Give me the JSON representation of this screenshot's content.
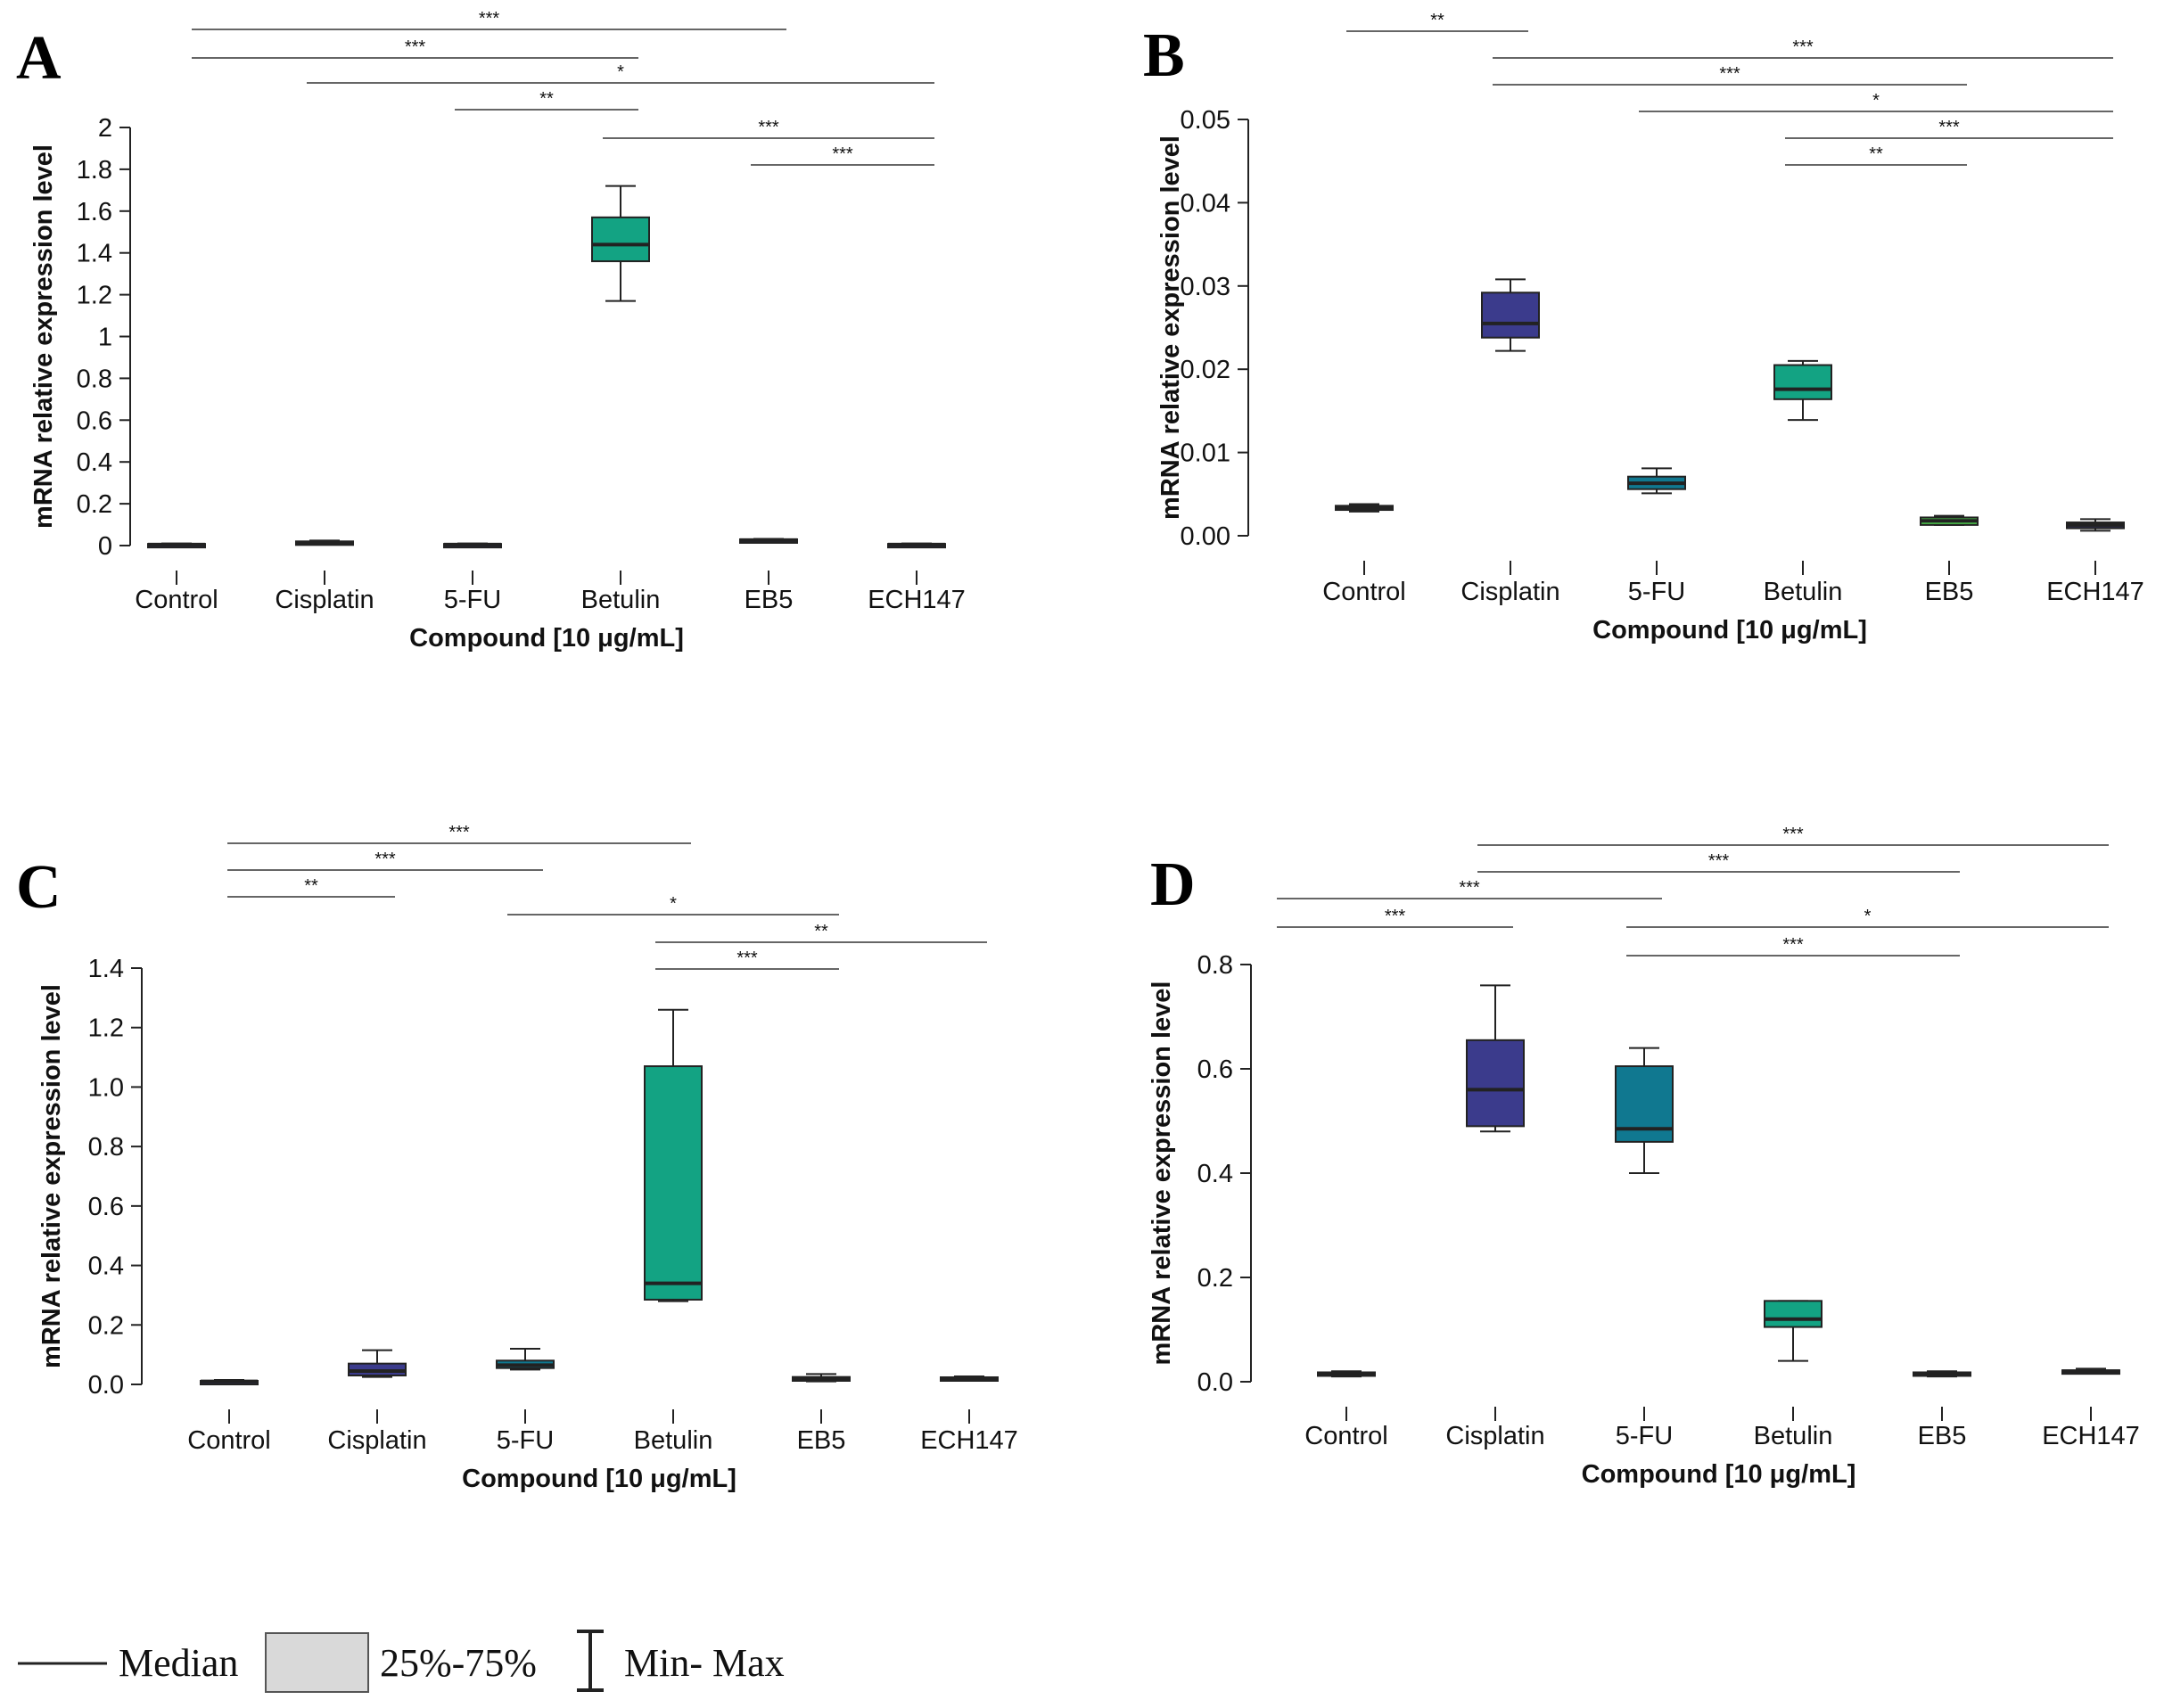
{
  "colors": {
    "box_default": "#13a383",
    "axis": "#222222",
    "legend_box_fill": "#d9d9d9"
  },
  "chart_data": [
    {
      "id": "A",
      "type": "box",
      "panel_label": "A",
      "ylabel": "mRNA relative expression level",
      "xlabel": "Compound [10 μg/mL]",
      "ylim": [
        0,
        2
      ],
      "yticks": [
        "0",
        "0.2",
        "0.4",
        "0.6",
        "0.8",
        "1",
        "1.2",
        "1.4",
        "1.6",
        "1.8",
        "2"
      ],
      "categories": [
        "Control",
        "Cisplatin",
        "5-FU",
        "Betulin",
        "EB5",
        "ECH147"
      ],
      "boxes": [
        {
          "min": 0.002,
          "q1": 0.003,
          "median": 0.005,
          "q3": 0.008,
          "max": 0.01,
          "color": "#2e2e52"
        },
        {
          "min": 0.006,
          "q1": 0.008,
          "median": 0.012,
          "q3": 0.02,
          "max": 0.024,
          "color": "#2e2e52"
        },
        {
          "min": 0.002,
          "q1": 0.003,
          "median": 0.005,
          "q3": 0.008,
          "max": 0.01,
          "color": "#2e2e52"
        },
        {
          "min": 1.17,
          "q1": 1.36,
          "median": 1.44,
          "q3": 1.57,
          "max": 1.72,
          "color": "#13a383"
        },
        {
          "min": 0.018,
          "q1": 0.022,
          "median": 0.026,
          "q3": 0.03,
          "max": 0.032,
          "color": "#2e2e52"
        },
        {
          "min": 0.002,
          "q1": 0.003,
          "median": 0.005,
          "q3": 0.008,
          "max": 0.01,
          "color": "#2e2e52"
        }
      ],
      "significance": [
        {
          "from": 0,
          "to": 4,
          "label": "***"
        },
        {
          "from": 0,
          "to": 3,
          "label": "***"
        },
        {
          "from": 1,
          "to": 5,
          "label": "*"
        },
        {
          "from": 2,
          "to": 3,
          "label": "**"
        },
        {
          "from": 3,
          "to": 5,
          "label": "***"
        },
        {
          "from": 4,
          "to": 5,
          "label": "***"
        }
      ]
    },
    {
      "id": "B",
      "type": "box",
      "panel_label": "B",
      "ylabel": "mRNA relative expression level",
      "xlabel": "Compound [10 μg/mL]",
      "ylim": [
        0,
        0.05
      ],
      "yticks": [
        "0.00",
        "0.01",
        "0.02",
        "0.03",
        "0.04",
        "0.05"
      ],
      "categories": [
        "Control",
        "Cisplatin",
        "5-FU",
        "Betulin",
        "EB5",
        "ECH147"
      ],
      "boxes": [
        {
          "min": 0.0029,
          "q1": 0.0031,
          "median": 0.0034,
          "q3": 0.0036,
          "max": 0.0038,
          "color": "#2e2e52"
        },
        {
          "min": 0.0222,
          "q1": 0.0238,
          "median": 0.0255,
          "q3": 0.0292,
          "max": 0.0308,
          "color": "#3b3b8c"
        },
        {
          "min": 0.0051,
          "q1": 0.0056,
          "median": 0.0063,
          "q3": 0.0071,
          "max": 0.0081,
          "color": "#107890"
        },
        {
          "min": 0.0139,
          "q1": 0.0164,
          "median": 0.0176,
          "q3": 0.0205,
          "max": 0.021,
          "color": "#13a383"
        },
        {
          "min": 0.0013,
          "q1": 0.0013,
          "median": 0.0018,
          "q3": 0.0022,
          "max": 0.0024,
          "color": "#4bbf4b"
        },
        {
          "min": 0.0006,
          "q1": 0.0009,
          "median": 0.0013,
          "q3": 0.0016,
          "max": 0.002,
          "color": "#2e2e52"
        }
      ],
      "significance": [
        {
          "from": 0,
          "to": 1,
          "label": "**"
        },
        {
          "from": 1,
          "to": 5,
          "label": "***"
        },
        {
          "from": 1,
          "to": 4,
          "label": "***"
        },
        {
          "from": 2,
          "to": 5,
          "label": "*"
        },
        {
          "from": 3,
          "to": 5,
          "label": "***"
        },
        {
          "from": 3,
          "to": 4,
          "label": "**"
        }
      ]
    },
    {
      "id": "C",
      "type": "box",
      "panel_label": "C",
      "ylabel": "mRNA relative expression level",
      "xlabel": "Compound [10 μg/mL]",
      "ylim": [
        0,
        1.4
      ],
      "yticks": [
        "0.0",
        "0.2",
        "0.4",
        "0.6",
        "0.8",
        "1.0",
        "1.2",
        "1.4"
      ],
      "categories": [
        "Control",
        "Cisplatin",
        "5-FU",
        "Betulin",
        "EB5",
        "ECH147"
      ],
      "boxes": [
        {
          "min": 0.005,
          "q1": 0.008,
          "median": 0.01,
          "q3": 0.012,
          "max": 0.015,
          "color": "#2e2e52"
        },
        {
          "min": 0.025,
          "q1": 0.03,
          "median": 0.045,
          "q3": 0.07,
          "max": 0.115,
          "color": "#3b3b8c"
        },
        {
          "min": 0.05,
          "q1": 0.055,
          "median": 0.065,
          "q3": 0.08,
          "max": 0.12,
          "color": "#107890"
        },
        {
          "min": 0.28,
          "q1": 0.285,
          "median": 0.34,
          "q3": 1.07,
          "max": 1.26,
          "color": "#13a383"
        },
        {
          "min": 0.01,
          "q1": 0.012,
          "median": 0.018,
          "q3": 0.025,
          "max": 0.035,
          "color": "#107890"
        },
        {
          "min": 0.016,
          "q1": 0.018,
          "median": 0.021,
          "q3": 0.024,
          "max": 0.027,
          "color": "#2e2e52"
        }
      ],
      "significance": [
        {
          "from": 0,
          "to": 3,
          "label": "***"
        },
        {
          "from": 0,
          "to": 2,
          "label": "***"
        },
        {
          "from": 0,
          "to": 1,
          "label": "**"
        },
        {
          "from": 2,
          "to": 4,
          "label": "*"
        },
        {
          "from": 3,
          "to": 5,
          "label": "**"
        },
        {
          "from": 3,
          "to": 4,
          "label": "***"
        }
      ]
    },
    {
      "id": "D",
      "type": "box",
      "panel_label": "D",
      "ylabel": "mRNA relative expression level",
      "xlabel": "Compound [10 μg/mL]",
      "ylim": [
        0,
        0.8
      ],
      "yticks": [
        "0.0",
        "0.2",
        "0.4",
        "0.6",
        "0.8"
      ],
      "categories": [
        "Control",
        "Cisplatin",
        "5-FU",
        "Betulin",
        "EB5",
        "ECH147"
      ],
      "boxes": [
        {
          "min": 0.01,
          "q1": 0.012,
          "median": 0.015,
          "q3": 0.018,
          "max": 0.02,
          "color": "#2e2e52"
        },
        {
          "min": 0.48,
          "q1": 0.49,
          "median": 0.56,
          "q3": 0.655,
          "max": 0.76,
          "color": "#3b3b8c"
        },
        {
          "min": 0.4,
          "q1": 0.46,
          "median": 0.485,
          "q3": 0.605,
          "max": 0.64,
          "color": "#107890"
        },
        {
          "min": 0.04,
          "q1": 0.105,
          "median": 0.12,
          "q3": 0.155,
          "max": 0.155,
          "color": "#13a383"
        },
        {
          "min": 0.01,
          "q1": 0.012,
          "median": 0.015,
          "q3": 0.018,
          "max": 0.02,
          "color": "#107890"
        },
        {
          "min": 0.016,
          "q1": 0.017,
          "median": 0.02,
          "q3": 0.022,
          "max": 0.025,
          "color": "#2e2e52"
        }
      ],
      "significance": [
        {
          "from": 1,
          "to": 5,
          "label": "***"
        },
        {
          "from": 1,
          "to": 4,
          "label": "***"
        },
        {
          "from": 0,
          "to": 2,
          "label": "***"
        },
        {
          "from": 0,
          "to": 1,
          "label": "***"
        },
        {
          "from": 2,
          "to": 5,
          "label": "*"
        },
        {
          "from": 2,
          "to": 4,
          "label": "***"
        }
      ]
    }
  ],
  "legend": {
    "median_label": "Median",
    "box_label": "25%-75%",
    "whisker_label": "Min- Max"
  }
}
